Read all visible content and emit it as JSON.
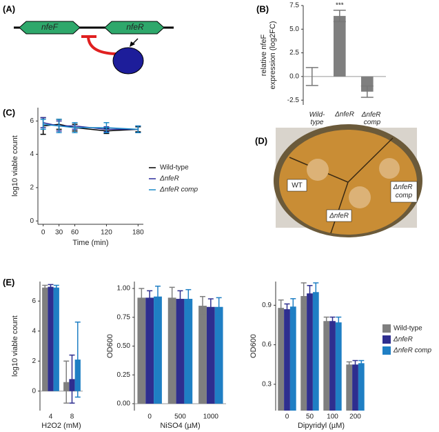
{
  "diagram_a": {
    "panel": "(A)",
    "genes": [
      "nfeF",
      "nfeR"
    ]
  },
  "photo_d": {
    "panel": "(D)",
    "labels": [
      "WT",
      "ΔnfeR comp",
      "ΔnfeR"
    ]
  },
  "chart_data": [
    {
      "type": "bar",
      "panel": "(B)",
      "ylabel": [
        "relative nfeF",
        "expression (log2FC)"
      ],
      "categories": [
        "Wild-type",
        "ΔnfeR",
        "ΔnfeR comp"
      ],
      "values": [
        0,
        6.4,
        -1.6
      ],
      "errors": [
        0.95,
        0.6,
        0.6
      ],
      "color": "#7f7f7f",
      "annotation": "***",
      "ylim": [
        -3,
        7.5
      ],
      "yticks": [
        {
          "value": -2.5,
          "label": "-2.5"
        },
        {
          "value": 0,
          "label": "0.0"
        },
        {
          "value": 2.5,
          "label": "2.5"
        },
        {
          "value": 5,
          "label": "5.0"
        },
        {
          "value": 7.5,
          "label": "7.5"
        }
      ]
    },
    {
      "type": "line",
      "panel": "(C)",
      "ylabel": "log10 viable count",
      "xlabel": "Time (min)",
      "x": [
        0,
        30,
        60,
        120,
        180
      ],
      "xlim": [
        -10,
        190
      ],
      "xticks": [
        0,
        30,
        60,
        120,
        180
      ],
      "ylim": [
        -0.2,
        6.8
      ],
      "yticks": [
        0,
        2,
        4,
        6
      ],
      "series": [
        {
          "name": "Wild-type",
          "color": "#000000",
          "values": [
            5.7,
            5.8,
            5.6,
            5.4,
            5.5
          ],
          "errors": [
            0.5,
            0.3,
            0.2,
            0.15,
            0.15
          ]
        },
        {
          "name": "ΔnfeR",
          "color": "#2c2c9a",
          "values": [
            5.9,
            5.7,
            5.7,
            5.5,
            5.5
          ],
          "errors": [
            0.3,
            0.3,
            0.2,
            0.15,
            0.2
          ]
        },
        {
          "name": "ΔnfeR comp",
          "color": "#1a8ac8",
          "values": [
            5.8,
            5.7,
            5.6,
            5.6,
            5.5
          ],
          "errors": [
            0.3,
            0.4,
            0.3,
            0.3,
            0.2
          ]
        }
      ]
    },
    {
      "type": "bar",
      "panel": "(E)",
      "ylabel": "log10 viable count",
      "xlabel": "H2O2 (mM)",
      "categories": [
        "4",
        "8"
      ],
      "ylim": [
        -1.3,
        7.3
      ],
      "yticks": [
        0,
        2,
        4,
        6
      ],
      "series": [
        {
          "color": "#7f7f7f",
          "values": [
            6.9,
            0.6
          ],
          "errors": [
            0.15,
            1.4
          ]
        },
        {
          "color": "#2e2e8f",
          "values": [
            6.95,
            0.8
          ],
          "errors": [
            0.15,
            1.6
          ]
        },
        {
          "color": "#1f7fc4",
          "values": [
            6.9,
            2.1
          ],
          "errors": [
            0.15,
            2.5
          ]
        }
      ]
    },
    {
      "type": "bar",
      "ylabel": "OD600",
      "xlabel": "NiSO4 (µM)",
      "categories": [
        "0",
        "500",
        "1000"
      ],
      "ylim": [
        -0.06,
        1.06
      ],
      "yticks": [
        {
          "value": 0,
          "label": "0.00"
        },
        {
          "value": 0.25,
          "label": "0.25"
        },
        {
          "value": 0.5,
          "label": "0.50"
        },
        {
          "value": 0.75,
          "label": "0.75"
        },
        {
          "value": 1,
          "label": "1.00"
        }
      ],
      "series": [
        {
          "color": "#7f7f7f",
          "values": [
            0.92,
            0.92,
            0.85
          ],
          "errors": [
            0.08,
            0.09,
            0.08
          ]
        },
        {
          "color": "#2e2e8f",
          "values": [
            0.92,
            0.91,
            0.84
          ],
          "errors": [
            0.06,
            0.07,
            0.07
          ]
        },
        {
          "color": "#1f7fc4",
          "values": [
            0.93,
            0.91,
            0.84
          ],
          "errors": [
            0.09,
            0.08,
            0.08
          ]
        }
      ]
    },
    {
      "type": "bar",
      "ylabel": "OD600",
      "xlabel": "Dipyridyl (µM)",
      "categories": [
        "0",
        "50",
        "100",
        "200"
      ],
      "ylim": [
        0.1,
        1.08
      ],
      "yticks": [
        {
          "value": 0.3,
          "label": "0.3"
        },
        {
          "value": 0.6,
          "label": "0.6"
        },
        {
          "value": 0.9,
          "label": "0.9"
        }
      ],
      "series": [
        {
          "name": "Wild-type",
          "color": "#7f7f7f",
          "values": [
            0.88,
            0.97,
            0.78,
            0.45
          ],
          "errors": [
            0.06,
            0.1,
            0.03,
            0.02
          ]
        },
        {
          "name": "ΔnfeR",
          "color": "#2e2e8f",
          "values": [
            0.87,
            0.99,
            0.78,
            0.45
          ],
          "errors": [
            0.04,
            0.06,
            0.03,
            0.03
          ]
        },
        {
          "name": "ΔnfeR comp",
          "color": "#1f7fc4",
          "values": [
            0.89,
            1.0,
            0.77,
            0.46
          ],
          "errors": [
            0.06,
            0.07,
            0.04,
            0.02
          ]
        }
      ]
    }
  ]
}
